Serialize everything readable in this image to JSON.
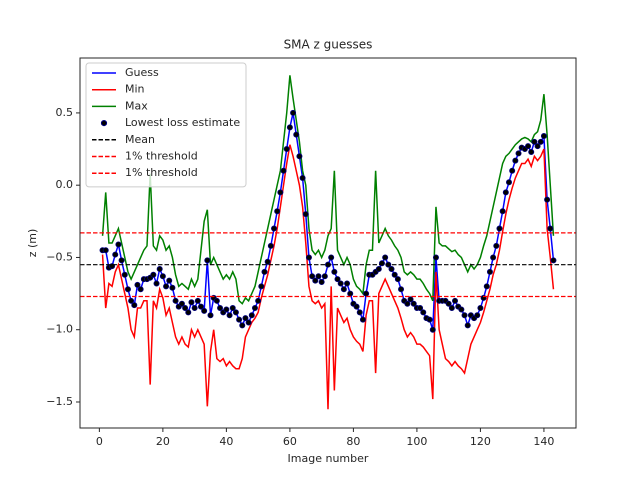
{
  "chart_data": {
    "type": "line",
    "title": "SMA z guesses",
    "xlabel": "Image number",
    "ylabel": "z (m)",
    "xlim": [
      -6.1,
      150.1
    ],
    "ylim": [
      -1.68,
      0.88
    ],
    "xticks": [
      0,
      20,
      40,
      60,
      80,
      100,
      120,
      140
    ],
    "yticks": [
      {
        "value": -1.5,
        "label": "−1.5"
      },
      {
        "value": -1.0,
        "label": "−1.0"
      },
      {
        "value": -0.5,
        "label": "−0.5"
      },
      {
        "value": 0,
        "label": "0.0"
      },
      0.5
    ],
    "legend": "upper left",
    "x": [
      1,
      2,
      3,
      4,
      5,
      6,
      7,
      8,
      9,
      10,
      11,
      12,
      13,
      14,
      15,
      16,
      17,
      18,
      19,
      20,
      21,
      22,
      23,
      24,
      25,
      26,
      27,
      28,
      29,
      30,
      31,
      32,
      33,
      34,
      35,
      36,
      37,
      38,
      39,
      40,
      41,
      42,
      43,
      44,
      45,
      46,
      47,
      48,
      49,
      50,
      51,
      52,
      53,
      54,
      55,
      56,
      57,
      58,
      59,
      60,
      61,
      62,
      63,
      64,
      65,
      66,
      67,
      68,
      69,
      70,
      71,
      72,
      73,
      74,
      75,
      76,
      77,
      78,
      79,
      80,
      81,
      82,
      83,
      84,
      85,
      86,
      87,
      88,
      89,
      90,
      91,
      92,
      93,
      94,
      95,
      96,
      97,
      98,
      99,
      100,
      101,
      102,
      103,
      104,
      105,
      106,
      107,
      108,
      109,
      110,
      111,
      112,
      113,
      114,
      115,
      116,
      117,
      118,
      119,
      120,
      121,
      122,
      123,
      124,
      125,
      126,
      127,
      128,
      129,
      130,
      131,
      132,
      133,
      134,
      135,
      136,
      137,
      138,
      139,
      140,
      141,
      142,
      143
    ],
    "series": [
      {
        "name": "Guess",
        "type": "line",
        "color": "#0000ff",
        "values": [
          -0.45,
          -0.45,
          -0.57,
          -0.56,
          -0.48,
          -0.41,
          -0.52,
          -0.62,
          -0.72,
          -0.8,
          -0.83,
          -0.69,
          -0.72,
          -0.65,
          -0.65,
          -0.64,
          -0.62,
          -0.68,
          -0.58,
          -0.63,
          -0.7,
          -0.66,
          -0.71,
          -0.8,
          -0.84,
          -0.82,
          -0.85,
          -0.88,
          -0.81,
          -0.85,
          -0.8,
          -0.84,
          -0.87,
          -0.52,
          -0.9,
          -0.78,
          -0.8,
          -0.85,
          -0.88,
          -0.86,
          -0.9,
          -0.85,
          -0.88,
          -0.93,
          -0.97,
          -0.92,
          -0.95,
          -0.9,
          -0.85,
          -0.8,
          -0.7,
          -0.6,
          -0.53,
          -0.42,
          -0.3,
          -0.18,
          -0.05,
          0.1,
          0.25,
          0.4,
          0.5,
          0.35,
          0.2,
          0.05,
          -0.2,
          -0.5,
          -0.63,
          -0.66,
          -0.63,
          -0.67,
          -0.63,
          -0.55,
          -0.5,
          -0.6,
          -0.65,
          -0.68,
          -0.72,
          -0.68,
          -0.75,
          -0.82,
          -0.84,
          -0.88,
          -0.93,
          -0.75,
          -0.62,
          -0.62,
          -0.6,
          -0.58,
          -0.54,
          -0.5,
          -0.55,
          -0.58,
          -0.62,
          -0.65,
          -0.72,
          -0.8,
          -0.82,
          -0.79,
          -0.82,
          -0.85,
          -0.85,
          -0.88,
          -0.92,
          -0.93,
          -1.0,
          -0.5,
          -0.8,
          -0.8,
          -0.8,
          -0.82,
          -0.85,
          -0.8,
          -0.84,
          -0.86,
          -0.9,
          -0.97,
          -0.9,
          -0.92,
          -0.9,
          -0.85,
          -0.78,
          -0.7,
          -0.6,
          -0.5,
          -0.42,
          -0.3,
          -0.18,
          -0.05,
          0.02,
          0.1,
          0.17,
          0.22,
          0.26,
          0.25,
          0.27,
          0.23,
          0.3,
          0.27,
          0.3,
          0.34,
          -0.1,
          -0.3,
          -0.52
        ]
      },
      {
        "name": "Min",
        "type": "line",
        "color": "#ff0000",
        "values": [
          -0.48,
          -0.85,
          -0.68,
          -0.7,
          -0.6,
          -0.55,
          -0.65,
          -0.75,
          -0.85,
          -1.0,
          -1.05,
          -0.85,
          -0.85,
          -0.8,
          -0.8,
          -1.38,
          -0.8,
          -0.85,
          -0.72,
          -0.78,
          -0.9,
          -0.85,
          -0.95,
          -1.05,
          -1.1,
          -1.05,
          -1.1,
          -1.12,
          -1.0,
          -1.05,
          -1.0,
          -1.05,
          -1.1,
          -1.53,
          -1.15,
          -1.0,
          -1.2,
          -1.22,
          -1.2,
          -1.25,
          -1.22,
          -1.25,
          -1.27,
          -1.27,
          -1.2,
          -1.05,
          -1.0,
          -0.95,
          -0.92,
          -0.88,
          -0.78,
          -0.7,
          -0.62,
          -0.52,
          -0.42,
          -0.3,
          -0.15,
          0.0,
          0.15,
          0.28,
          0.2,
          0.1,
          0.0,
          -0.15,
          -0.4,
          -0.7,
          -0.8,
          -0.82,
          -0.8,
          -0.85,
          -0.82,
          -1.55,
          -0.7,
          -1.42,
          -0.85,
          -0.9,
          -0.95,
          -0.92,
          -1.0,
          -1.05,
          -1.08,
          -1.1,
          -1.15,
          -0.9,
          -0.8,
          -0.8,
          -1.3,
          -0.75,
          -0.7,
          -0.65,
          -0.7,
          -0.75,
          -0.8,
          -0.85,
          -0.92,
          -1.0,
          -1.05,
          -1.02,
          -1.05,
          -1.1,
          -1.1,
          -1.12,
          -1.15,
          -1.18,
          -1.48,
          -0.6,
          -1.0,
          -1.1,
          -1.2,
          -1.22,
          -1.25,
          -1.22,
          -1.25,
          -1.27,
          -1.3,
          -1.2,
          -1.1,
          -1.05,
          -1.0,
          -0.95,
          -0.88,
          -0.8,
          -0.72,
          -0.62,
          -0.55,
          -0.45,
          -0.32,
          -0.2,
          -0.1,
          -0.02,
          0.05,
          0.1,
          0.15,
          0.15,
          0.18,
          0.13,
          0.2,
          0.17,
          0.2,
          0.25,
          -0.3,
          -0.5,
          -0.72
        ]
      },
      {
        "name": "Max",
        "type": "line",
        "color": "#008000",
        "values": [
          -0.35,
          -0.05,
          -0.4,
          -0.4,
          -0.35,
          -0.3,
          -0.4,
          -0.5,
          -0.6,
          -0.65,
          -0.6,
          -0.55,
          -0.5,
          -0.45,
          -0.42,
          0.08,
          -0.42,
          -0.45,
          -0.35,
          -0.38,
          -0.45,
          -0.42,
          -0.5,
          -0.62,
          -0.7,
          -0.68,
          -0.7,
          -0.72,
          -0.65,
          -0.7,
          -0.65,
          -0.45,
          -0.25,
          -0.17,
          -0.55,
          -0.5,
          -0.55,
          -0.6,
          -0.65,
          -0.62,
          -0.65,
          -0.6,
          -0.65,
          -0.8,
          -0.82,
          -0.78,
          -0.8,
          -0.75,
          -0.7,
          -0.6,
          -0.5,
          -0.4,
          -0.3,
          -0.2,
          -0.1,
          0.0,
          0.1,
          0.3,
          0.5,
          0.76,
          0.6,
          0.45,
          0.3,
          0.1,
          0.0,
          -0.3,
          -0.45,
          -0.48,
          -0.45,
          -0.5,
          -0.45,
          -0.35,
          -0.3,
          0.1,
          -0.45,
          -0.5,
          -0.55,
          -0.5,
          -0.55,
          -0.65,
          -0.7,
          -0.72,
          -0.75,
          -0.55,
          -0.45,
          -0.45,
          0.1,
          -0.4,
          -0.35,
          -0.3,
          -0.35,
          -0.38,
          -0.42,
          -0.45,
          -0.5,
          -0.6,
          -0.62,
          -0.6,
          -0.62,
          -0.65,
          -0.65,
          -0.68,
          -0.72,
          -0.75,
          -0.8,
          -0.15,
          -0.4,
          -0.42,
          -0.42,
          -0.44,
          -0.46,
          -0.45,
          -0.48,
          -0.5,
          -0.55,
          -0.6,
          -0.55,
          -0.58,
          -0.55,
          -0.5,
          -0.42,
          -0.35,
          -0.25,
          -0.15,
          -0.05,
          0.05,
          0.15,
          0.2,
          0.22,
          0.25,
          0.28,
          0.3,
          0.32,
          0.33,
          0.32,
          0.3,
          0.35,
          0.37,
          0.45,
          0.63,
          0.35,
          0.0,
          -0.35
        ]
      },
      {
        "name": "Lowest loss estimate",
        "type": "scatter",
        "color": "#000000",
        "edgecolor": "#000080",
        "values": [
          -0.45,
          -0.45,
          -0.57,
          -0.56,
          -0.48,
          -0.41,
          -0.52,
          -0.62,
          -0.72,
          -0.8,
          -0.83,
          -0.69,
          -0.72,
          -0.65,
          -0.65,
          -0.64,
          -0.62,
          -0.68,
          -0.58,
          -0.63,
          -0.7,
          -0.66,
          -0.71,
          -0.8,
          -0.84,
          -0.82,
          -0.85,
          -0.88,
          -0.81,
          -0.85,
          -0.8,
          -0.84,
          -0.87,
          -0.52,
          -0.9,
          -0.78,
          -0.8,
          -0.85,
          -0.88,
          -0.86,
          -0.9,
          -0.85,
          -0.88,
          -0.93,
          -0.97,
          -0.92,
          -0.95,
          -0.9,
          -0.85,
          -0.8,
          -0.7,
          -0.6,
          -0.53,
          -0.42,
          -0.3,
          -0.18,
          -0.05,
          0.1,
          0.25,
          0.4,
          0.5,
          0.35,
          0.2,
          0.05,
          -0.2,
          -0.5,
          -0.63,
          -0.66,
          -0.63,
          -0.67,
          -0.63,
          -0.55,
          -0.5,
          -0.6,
          -0.65,
          -0.68,
          -0.72,
          -0.68,
          -0.75,
          -0.82,
          -0.84,
          -0.88,
          -0.93,
          -0.75,
          -0.62,
          -0.62,
          -0.6,
          -0.58,
          -0.54,
          -0.5,
          -0.55,
          -0.58,
          -0.62,
          -0.65,
          -0.72,
          -0.8,
          -0.82,
          -0.79,
          -0.82,
          -0.85,
          -0.85,
          -0.88,
          -0.92,
          -0.93,
          -1.0,
          -0.5,
          -0.8,
          -0.8,
          -0.8,
          -0.82,
          -0.85,
          -0.8,
          -0.84,
          -0.86,
          -0.9,
          -0.97,
          -0.9,
          -0.92,
          -0.9,
          -0.85,
          -0.78,
          -0.7,
          -0.6,
          -0.5,
          -0.42,
          -0.3,
          -0.18,
          -0.05,
          0.02,
          0.1,
          0.17,
          0.22,
          0.26,
          0.25,
          0.27,
          0.23,
          0.3,
          0.27,
          0.3,
          0.34,
          -0.1,
          -0.3,
          -0.52
        ]
      }
    ],
    "hlines": [
      {
        "name": "Mean",
        "color": "#000000",
        "value": -0.55
      },
      {
        "name": "1% threshold",
        "color": "#ff0000",
        "value": -0.33
      },
      {
        "name": "1% threshold",
        "color": "#ff0000",
        "value": -0.77
      }
    ]
  }
}
